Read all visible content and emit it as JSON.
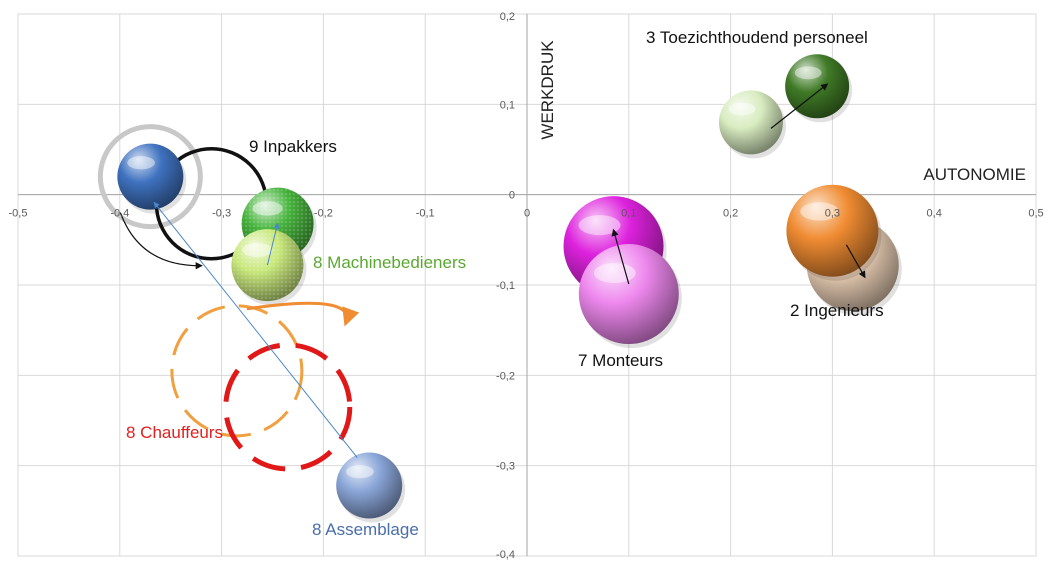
{
  "chart_data": {
    "type": "scatter",
    "title": "",
    "xlabel": "AUTONOMIE",
    "ylabel": "WERKDRUK",
    "xlim": [
      -0.5,
      0.5
    ],
    "ylim": [
      -0.4,
      0.2
    ],
    "grid": true,
    "x_ticks": [
      "-0,5",
      "-0,4",
      "-0,3",
      "-0,2",
      "-0,1",
      "0",
      "0,1",
      "0,2",
      "0,3",
      "0,4",
      "0,5"
    ],
    "y_ticks": [
      "0,2",
      "0,1",
      "0",
      "-0,1",
      "-0,2",
      "-0,3",
      "-0,4"
    ],
    "groups": [
      {
        "label": "9 Inpakkers",
        "label_color": "#111111",
        "from": {
          "x": -0.37,
          "y": 0.02
        },
        "to": {
          "x": -0.31,
          "y": -0.01
        },
        "style": "rings",
        "from_color": "#c8c8c8",
        "to_color": "#111111",
        "from_ball_color": "#3f72c0"
      },
      {
        "label": "8 Machinebedieners",
        "label_color": "#5aa832",
        "from": {
          "x": -0.255,
          "y": -0.078
        },
        "to": {
          "x": -0.245,
          "y": -0.032
        },
        "from_color": "#c8e87a",
        "to_color": "#46b43c"
      },
      {
        "label": "8 Chauffeurs",
        "label_color": "#e02020",
        "from": {
          "x": -0.285,
          "y": -0.195
        },
        "to": {
          "x": -0.235,
          "y": -0.235
        },
        "style": "dashed",
        "from_color": "#f0a040",
        "to_color": "#e01818",
        "arrow_color": "#f08c32"
      },
      {
        "label": "8 Assemblage",
        "label_color": "#4a6ea8",
        "from": {
          "x": -0.155,
          "y": -0.322
        },
        "to": {
          "x": -0.37,
          "y": 0.0
        },
        "from_color": "#8aa6d8",
        "to_color": "#4472c4"
      },
      {
        "label": "7 Monteurs",
        "label_color": "#111111",
        "from": {
          "x": 0.1,
          "y": -0.11
        },
        "to": {
          "x": 0.085,
          "y": -0.057
        },
        "from_color": "#ee88ee",
        "to_color": "#dd22dd"
      },
      {
        "label": "3 Toezichthoudend  personeel",
        "label_color": "#111111",
        "from": {
          "x": 0.22,
          "y": 0.08
        },
        "to": {
          "x": 0.285,
          "y": 0.12
        },
        "from_color": "#d8ecc0",
        "to_color": "#3f7a26"
      },
      {
        "label": "2 Ingenieurs",
        "label_color": "#111111",
        "from": {
          "x": 0.3,
          "y": -0.04
        },
        "to": {
          "x": 0.32,
          "y": -0.078
        },
        "from_color": "#f08c32",
        "to_color": "#e8cdb4"
      }
    ]
  }
}
